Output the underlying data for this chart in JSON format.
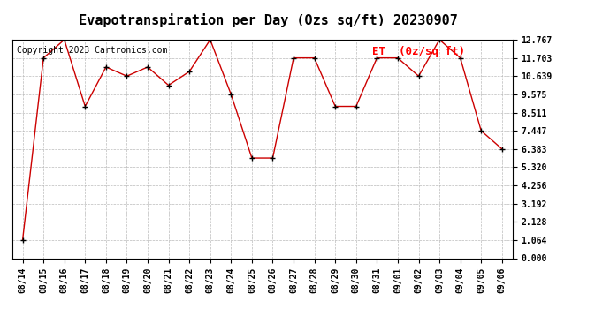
{
  "title": "Evapotranspiration per Day (Ozs sq/ft) 20230907",
  "copyright": "Copyright 2023 Cartronics.com",
  "legend_label": "ET  (0z/sq ft)",
  "dates": [
    "08/14",
    "08/15",
    "08/16",
    "08/17",
    "08/18",
    "08/19",
    "08/20",
    "08/21",
    "08/22",
    "08/23",
    "08/24",
    "08/25",
    "08/26",
    "08/27",
    "08/28",
    "08/29",
    "08/30",
    "08/31",
    "09/01",
    "09/02",
    "09/03",
    "09/04",
    "09/05",
    "09/06"
  ],
  "values": [
    1.064,
    11.703,
    12.767,
    8.872,
    11.171,
    10.639,
    11.171,
    10.107,
    10.907,
    12.767,
    9.575,
    5.852,
    5.852,
    11.703,
    11.703,
    8.872,
    8.872,
    11.703,
    11.703,
    10.639,
    12.767,
    11.703,
    7.447,
    6.383
  ],
  "line_color": "#cc0000",
  "marker_color": "#000000",
  "bg_color": "#ffffff",
  "grid_color": "#bbbbbb",
  "ylim": [
    0.0,
    12.767
  ],
  "yticks": [
    0.0,
    1.064,
    2.128,
    3.192,
    4.256,
    5.32,
    6.383,
    7.447,
    8.511,
    9.575,
    10.639,
    11.703,
    12.767
  ],
  "title_fontsize": 11,
  "tick_fontsize": 7,
  "legend_fontsize": 9,
  "copyright_fontsize": 7
}
